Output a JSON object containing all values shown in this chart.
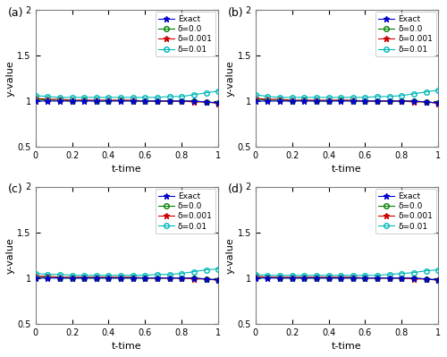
{
  "subplots": [
    "(a)",
    "(b)",
    "(c)",
    "(d)"
  ],
  "xlim": [
    0,
    1
  ],
  "ylim": [
    0.5,
    2
  ],
  "yticks": [
    0.5,
    1.0,
    1.5,
    2.0
  ],
  "xticks": [
    0,
    0.2,
    0.4,
    0.6,
    0.8,
    1.0
  ],
  "xtick_labels": [
    "0",
    "0.2",
    "0.4",
    "0.6",
    "0.8",
    "1"
  ],
  "ytick_labels": [
    "0.5",
    "1",
    "1.5",
    "2"
  ],
  "xlabel": "t-time",
  "ylabel": "y-value",
  "legend_labels": [
    "Exact",
    "δ=0.0",
    "δ=0.001",
    "δ=0.01"
  ],
  "line_colors": [
    "#0000cd",
    "#008000",
    "#cc0000",
    "#00b8b8"
  ],
  "n_points": 16,
  "figsize": [
    5.0,
    3.99
  ],
  "dpi": 100,
  "bg_color": "#f0f0f0",
  "axes_bg": "#ffffff",
  "subplot_data": [
    {
      "exact": [
        1.0,
        1.0,
        1.0,
        1.0,
        1.0,
        1.0,
        1.0,
        1.0,
        1.0,
        1.0,
        1.0,
        1.0,
        1.0,
        1.0,
        0.99,
        0.98
      ],
      "delta0": [
        1.02,
        1.01,
        1.01,
        1.0,
        1.01,
        1.0,
        1.0,
        1.01,
        1.0,
        1.0,
        1.0,
        1.0,
        1.0,
        1.0,
        0.99,
        0.98
      ],
      "delta001": [
        1.03,
        1.02,
        1.02,
        1.01,
        1.01,
        1.01,
        1.01,
        1.01,
        1.01,
        1.0,
        1.0,
        1.0,
        1.0,
        0.99,
        0.99,
        0.975
      ],
      "delta01": [
        1.06,
        1.05,
        1.04,
        1.04,
        1.04,
        1.04,
        1.04,
        1.04,
        1.04,
        1.04,
        1.04,
        1.05,
        1.05,
        1.07,
        1.09,
        1.11
      ]
    },
    {
      "exact": [
        1.0,
        1.0,
        1.0,
        1.0,
        1.0,
        1.0,
        1.0,
        1.0,
        1.0,
        1.0,
        1.0,
        1.0,
        1.0,
        1.0,
        0.99,
        0.98
      ],
      "delta0": [
        1.02,
        1.01,
        1.01,
        1.0,
        1.01,
        1.0,
        1.0,
        1.01,
        1.0,
        1.0,
        1.0,
        1.0,
        1.0,
        1.0,
        0.99,
        0.98
      ],
      "delta001": [
        1.03,
        1.02,
        1.02,
        1.01,
        1.01,
        1.01,
        1.01,
        1.01,
        1.01,
        1.0,
        1.0,
        1.0,
        1.0,
        0.99,
        0.99,
        0.975
      ],
      "delta01": [
        1.07,
        1.05,
        1.04,
        1.04,
        1.04,
        1.04,
        1.04,
        1.04,
        1.04,
        1.04,
        1.05,
        1.05,
        1.06,
        1.08,
        1.1,
        1.12
      ]
    },
    {
      "exact": [
        1.0,
        1.0,
        1.0,
        1.0,
        1.0,
        1.0,
        1.0,
        1.0,
        1.0,
        1.0,
        1.0,
        1.0,
        1.0,
        1.0,
        0.99,
        0.98
      ],
      "delta0": [
        1.01,
        1.01,
        1.0,
        1.0,
        1.0,
        1.0,
        1.0,
        1.0,
        1.0,
        1.0,
        1.0,
        1.0,
        1.0,
        1.0,
        0.99,
        0.98
      ],
      "delta001": [
        1.02,
        1.02,
        1.01,
        1.01,
        1.01,
        1.01,
        1.01,
        1.01,
        1.01,
        1.0,
        1.0,
        1.0,
        1.0,
        0.99,
        0.99,
        0.975
      ],
      "delta01": [
        1.05,
        1.04,
        1.04,
        1.03,
        1.03,
        1.03,
        1.03,
        1.03,
        1.03,
        1.03,
        1.04,
        1.04,
        1.05,
        1.07,
        1.09,
        1.1
      ]
    },
    {
      "exact": [
        1.0,
        1.0,
        1.0,
        1.0,
        1.0,
        1.0,
        1.0,
        1.0,
        1.0,
        1.0,
        1.0,
        1.0,
        1.0,
        1.0,
        0.99,
        0.98
      ],
      "delta0": [
        1.01,
        1.01,
        1.0,
        1.0,
        1.0,
        1.0,
        1.0,
        1.0,
        1.0,
        1.0,
        1.0,
        1.0,
        1.0,
        1.0,
        0.99,
        0.98
      ],
      "delta001": [
        1.02,
        1.01,
        1.01,
        1.01,
        1.01,
        1.01,
        1.01,
        1.01,
        1.01,
        1.0,
        1.0,
        1.0,
        1.0,
        0.99,
        0.99,
        0.975
      ],
      "delta01": [
        1.04,
        1.03,
        1.03,
        1.03,
        1.03,
        1.03,
        1.03,
        1.03,
        1.03,
        1.03,
        1.03,
        1.04,
        1.05,
        1.06,
        1.08,
        1.09
      ]
    }
  ]
}
